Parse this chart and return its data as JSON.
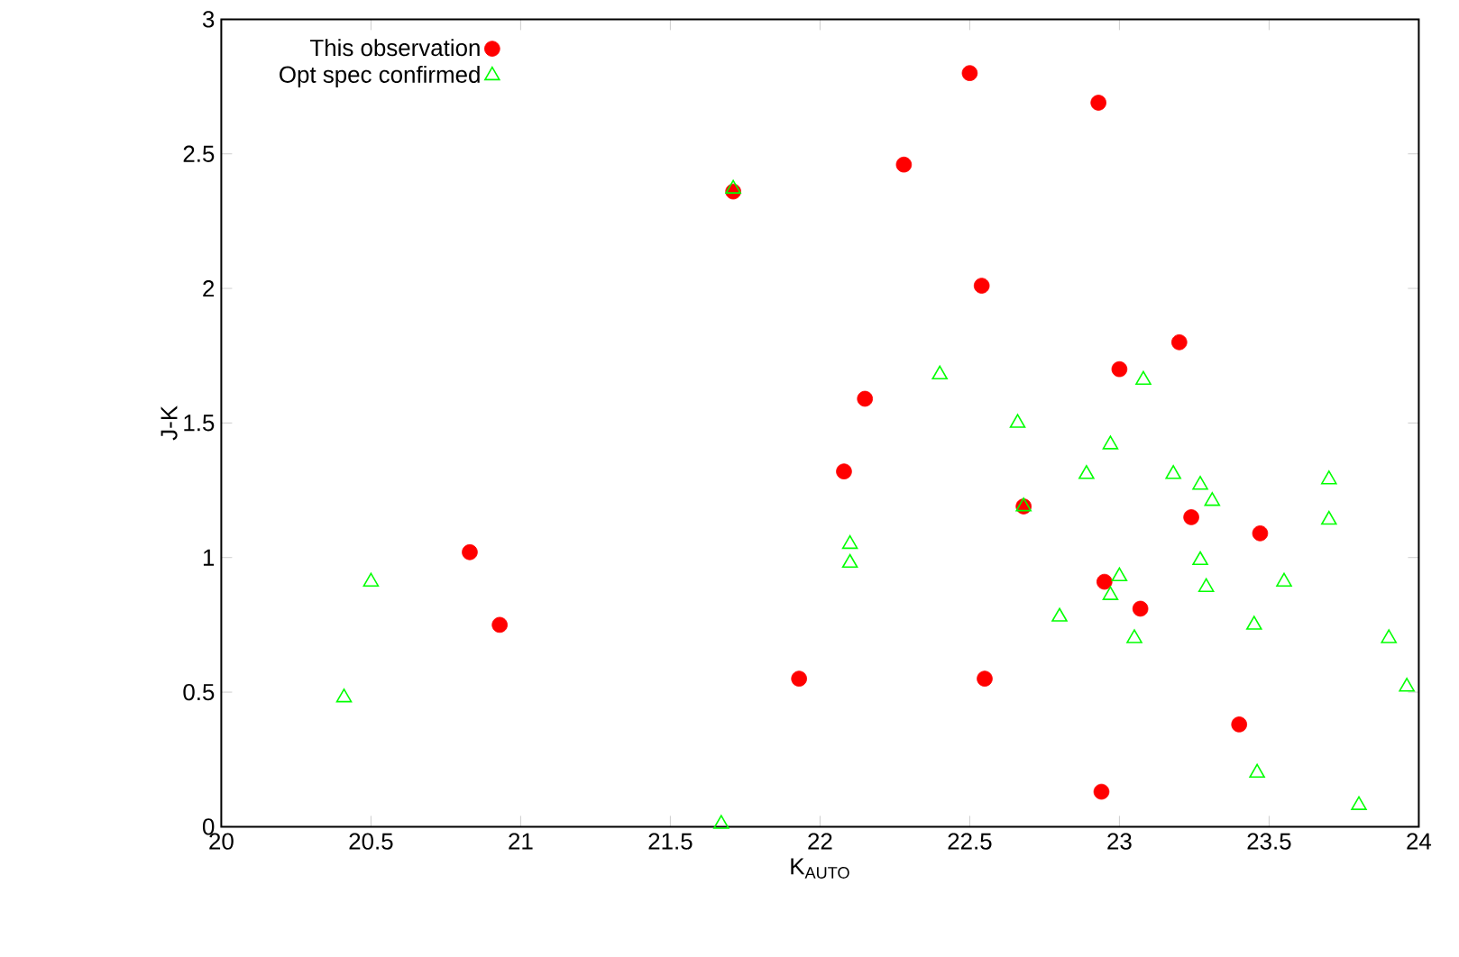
{
  "chart_data": {
    "type": "scatter",
    "xlabel": "K$_{AUTO}$",
    "ylabel": "J-K",
    "xlim": [
      20,
      24
    ],
    "ylim": [
      0,
      3
    ],
    "xticks": [
      20,
      20.5,
      21,
      21.5,
      22,
      22.5,
      23,
      23.5,
      24
    ],
    "yticks": [
      0,
      0.5,
      1,
      1.5,
      2,
      2.5,
      3
    ],
    "grid": false,
    "legend": "top left",
    "series": [
      {
        "name": "This observation",
        "color": "#ff0000",
        "marker": "circle",
        "x": [
          22.5,
          22.93,
          22.28,
          22.54,
          23.2,
          23.0,
          22.15,
          21.71,
          22.08,
          22.68,
          23.24,
          23.47,
          22.95,
          23.07,
          21.93,
          22.55,
          23.4,
          22.94,
          20.83,
          20.93
        ],
        "values": [
          2.8,
          2.69,
          2.46,
          2.01,
          1.8,
          1.7,
          1.59,
          2.36,
          1.32,
          1.19,
          1.15,
          1.09,
          0.91,
          0.81,
          0.55,
          0.55,
          0.38,
          0.13,
          1.02,
          0.75
        ]
      },
      {
        "name": "Opt spec confirmed",
        "color": "#00ff00",
        "marker": "triangle",
        "x": [
          21.71,
          22.4,
          22.66,
          23.08,
          22.97,
          22.89,
          23.18,
          23.27,
          23.31,
          23.7,
          23.7,
          22.68,
          22.1,
          22.1,
          23.27,
          23.0,
          22.97,
          23.29,
          23.55,
          22.8,
          23.05,
          23.45,
          23.9,
          23.96,
          23.46,
          23.8,
          20.5,
          20.41,
          21.67
        ],
        "values": [
          2.37,
          1.68,
          1.5,
          1.66,
          1.42,
          1.31,
          1.31,
          1.27,
          1.21,
          1.29,
          1.14,
          1.19,
          1.05,
          0.98,
          0.99,
          0.93,
          0.86,
          0.89,
          0.91,
          0.78,
          0.7,
          0.75,
          0.7,
          0.52,
          0.2,
          0.08,
          0.91,
          0.48,
          0.01
        ]
      }
    ]
  }
}
